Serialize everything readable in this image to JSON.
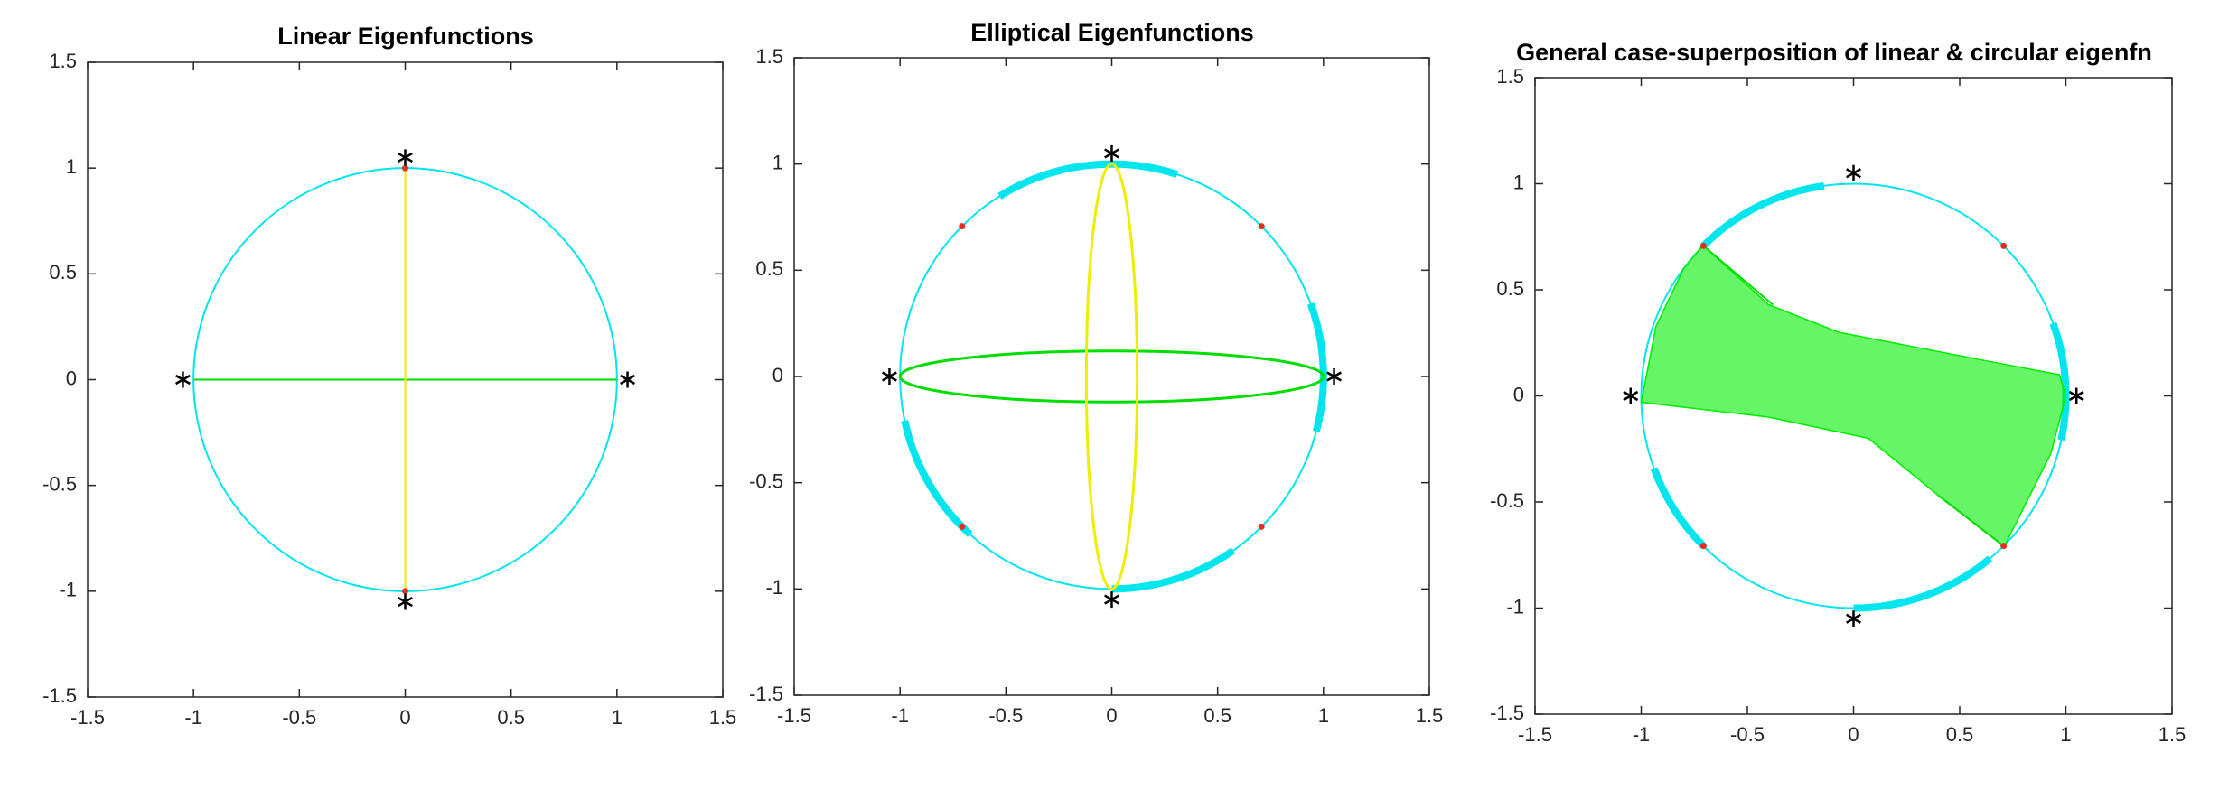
{
  "chart_data": [
    {
      "type": "line",
      "title": "Linear Eigenfunctions",
      "xlim": [
        -1.5,
        1.5
      ],
      "ylim": [
        -1.5,
        1.5
      ],
      "xticks": [
        -1.5,
        -1,
        -0.5,
        0,
        0.5,
        1,
        1.5
      ],
      "yticks": [
        -1.5,
        -1,
        -0.5,
        0,
        0.5,
        1,
        1.5
      ],
      "circles": [
        {
          "cx": 0,
          "cy": 0,
          "r": 1,
          "color": "#00e5ee"
        }
      ],
      "arcs": [],
      "lines": [
        {
          "x": [
            -1,
            1
          ],
          "y": [
            0,
            0
          ],
          "color": "#00dd00"
        },
        {
          "x": [
            0,
            0
          ],
          "y": [
            -1,
            1
          ],
          "color": "#eeee00"
        }
      ],
      "ellipses": [],
      "patches": [],
      "markers": [
        {
          "symbol": "dot",
          "color": "#e03020",
          "x": [
            0,
            0
          ],
          "y": [
            1,
            -1
          ]
        },
        {
          "symbol": "asterisk",
          "color": "#000000",
          "x": [
            1.05,
            -1.05,
            0,
            0
          ],
          "y": [
            0,
            0,
            1.05,
            -1.05
          ]
        }
      ]
    },
    {
      "type": "line",
      "title": "Elliptical Eigenfunctions",
      "xlim": [
        -1.5,
        1.5
      ],
      "ylim": [
        -1.5,
        1.5
      ],
      "xticks": [
        -1.5,
        -1,
        -0.5,
        0,
        0.5,
        1,
        1.5
      ],
      "yticks": [
        -1.5,
        -1,
        -0.5,
        0,
        0.5,
        1,
        1.5
      ],
      "circles": [
        {
          "cx": 0,
          "cy": 0,
          "r": 1,
          "color": "#00e5ee"
        }
      ],
      "arcs": [
        {
          "r": 1,
          "from": 72,
          "to": 122,
          "color": "#00e5ee"
        },
        {
          "r": 1,
          "from": -15,
          "to": 20,
          "color": "#00e5ee"
        },
        {
          "r": 1,
          "from": 192,
          "to": 228,
          "color": "#00e5ee"
        },
        {
          "r": 1,
          "from": 270,
          "to": 305,
          "color": "#00e5ee"
        }
      ],
      "lines": [],
      "ellipses": [
        {
          "cx": 0,
          "cy": 0,
          "rx": 1,
          "ry": 0.12,
          "color": "#00dd00"
        },
        {
          "cx": 0,
          "cy": 0,
          "rx": 0.12,
          "ry": 1,
          "color": "#eeee00"
        }
      ],
      "patches": [],
      "markers": [
        {
          "symbol": "dot",
          "color": "#e03020",
          "x": [
            -0.707,
            0.707,
            -0.707,
            0.707
          ],
          "y": [
            0.707,
            0.707,
            -0.707,
            -0.707
          ]
        },
        {
          "symbol": "asterisk",
          "color": "#000000",
          "x": [
            1.05,
            -1.05,
            0,
            0
          ],
          "y": [
            0,
            0,
            1.05,
            -1.05
          ]
        }
      ]
    },
    {
      "type": "line",
      "title": "General case-superposition of linear & circular eigenfn",
      "xlim": [
        -1.5,
        1.5
      ],
      "ylim": [
        -1.5,
        1.5
      ],
      "xticks": [
        -1.5,
        -1,
        -0.5,
        0,
        0.5,
        1,
        1.5
      ],
      "yticks": [
        -1.5,
        -1,
        -0.5,
        0,
        0.5,
        1,
        1.5
      ],
      "circles": [
        {
          "cx": 0,
          "cy": 0,
          "r": 1,
          "color": "#00e5ee"
        }
      ],
      "arcs": [
        {
          "r": 1,
          "from": 98,
          "to": 135,
          "color": "#00e5ee"
        },
        {
          "r": 1,
          "from": -12,
          "to": 20,
          "color": "#00e5ee"
        },
        {
          "r": 1,
          "from": 200,
          "to": 225,
          "color": "#00e5ee"
        },
        {
          "r": 1,
          "from": 270,
          "to": 310,
          "color": "#00e5ee"
        }
      ],
      "lines": [
        {
          "x": [
            -0.71,
            -0.38
          ],
          "y": [
            0.71,
            0.43
          ],
          "color": "#00dd00"
        },
        {
          "x": [
            0.71,
            0.4
          ],
          "y": [
            -0.71,
            -0.47
          ],
          "color": "#00dd00"
        }
      ],
      "ellipses": [],
      "patches": [
        {
          "color": "#00ee00",
          "opacity": 0.6,
          "x": [
            -0.71,
            -0.4,
            -0.07,
            0.6,
            0.97,
            1.0,
            0.93,
            0.71,
            0.4,
            0.07,
            -0.4,
            -1.0,
            -0.93,
            -0.8
          ],
          "y": [
            0.71,
            0.43,
            0.3,
            0.17,
            0.1,
            0.0,
            -0.27,
            -0.71,
            -0.47,
            -0.2,
            -0.1,
            -0.03,
            0.33,
            0.6
          ]
        }
      ],
      "markers": [
        {
          "symbol": "dot",
          "color": "#e03020",
          "x": [
            -0.707,
            0.707,
            -0.707,
            0.707
          ],
          "y": [
            0.707,
            0.707,
            -0.707,
            -0.707
          ]
        },
        {
          "symbol": "asterisk",
          "color": "#000000",
          "x": [
            1.05,
            -1.05,
            0,
            0
          ],
          "y": [
            0,
            0,
            1.05,
            -1.05
          ]
        }
      ]
    }
  ]
}
